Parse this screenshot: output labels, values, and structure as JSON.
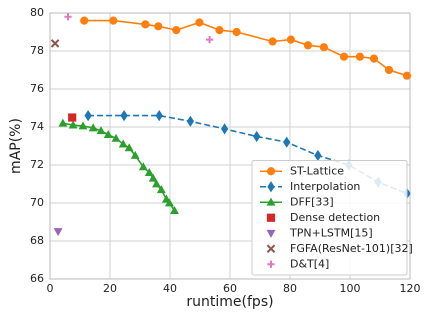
{
  "chart_data": {
    "type": "line",
    "xlabel": "runtime(fps)",
    "ylabel": "mAP(%)",
    "xlim": [
      0,
      120
    ],
    "xticks": [
      0,
      20,
      40,
      60,
      80,
      100,
      120
    ],
    "ylim": [
      66,
      80
    ],
    "yticks": [
      66,
      68,
      70,
      72,
      74,
      76,
      78,
      80
    ],
    "grid": true,
    "legend": "lower right",
    "series": [
      {
        "name": "ST-Lattice",
        "color": "#ff7f0e",
        "marker": "circle",
        "linestyle": "solid",
        "x": [
          11.4,
          21.1,
          31.8,
          36.1,
          42.1,
          49.8,
          56.5,
          62.2,
          74.2,
          80.3,
          86,
          91.3,
          98,
          103.3,
          108,
          113,
          119
        ],
        "values": [
          79.6,
          79.6,
          79.4,
          79.3,
          79.1,
          79.5,
          79.1,
          79.0,
          78.5,
          78.6,
          78.3,
          78.2,
          77.7,
          77.7,
          77.6,
          77.0,
          76.7
        ]
      },
      {
        "name": "Interpolation",
        "color": "#1f77b4",
        "marker": "diamond",
        "linestyle": "dashed",
        "x": [
          12.7,
          24.7,
          36.4,
          46.8,
          58.2,
          68.9,
          78.9,
          89.3,
          99.6,
          109.4,
          119
        ],
        "values": [
          74.6,
          74.6,
          74.6,
          74.3,
          73.9,
          73.5,
          73.2,
          72.5,
          72.0,
          71.1,
          70.5
        ]
      },
      {
        "name": "DFF[33]",
        "color": "#2ca02c",
        "marker": "triangle-up",
        "linestyle": "solid",
        "x": [
          4.3,
          7.7,
          11,
          14.4,
          17,
          19.4,
          22,
          24.4,
          26.4,
          28.4,
          31.1,
          33.1,
          34.4,
          35.5,
          37.1,
          38.8,
          39.8,
          41.5
        ],
        "values": [
          74.2,
          74.1,
          74.05,
          73.95,
          73.8,
          73.6,
          73.4,
          73.1,
          72.9,
          72.5,
          71.9,
          71.6,
          71.3,
          71.0,
          70.7,
          70.2,
          70.0,
          69.6
        ]
      },
      {
        "name": "Dense detection",
        "color": "#d62728",
        "marker": "square",
        "linestyle": "none",
        "x": [
          7.4
        ],
        "values": [
          74.5
        ]
      },
      {
        "name": "TPN+LSTM[15]",
        "color": "#9467bd",
        "marker": "triangle-down",
        "linestyle": "none",
        "x": [
          2.7
        ],
        "values": [
          68.5
        ]
      },
      {
        "name": "FGFA(ResNet-101)[32]",
        "color": "#8c564b",
        "marker": "x",
        "linestyle": "none",
        "x": [
          1.7
        ],
        "values": [
          78.4
        ]
      },
      {
        "name": "D&T[4]",
        "color": "#e377c2",
        "marker": "plus",
        "linestyle": "none",
        "x": [
          6,
          53.2
        ],
        "values": [
          79.8,
          78.6
        ]
      }
    ]
  }
}
